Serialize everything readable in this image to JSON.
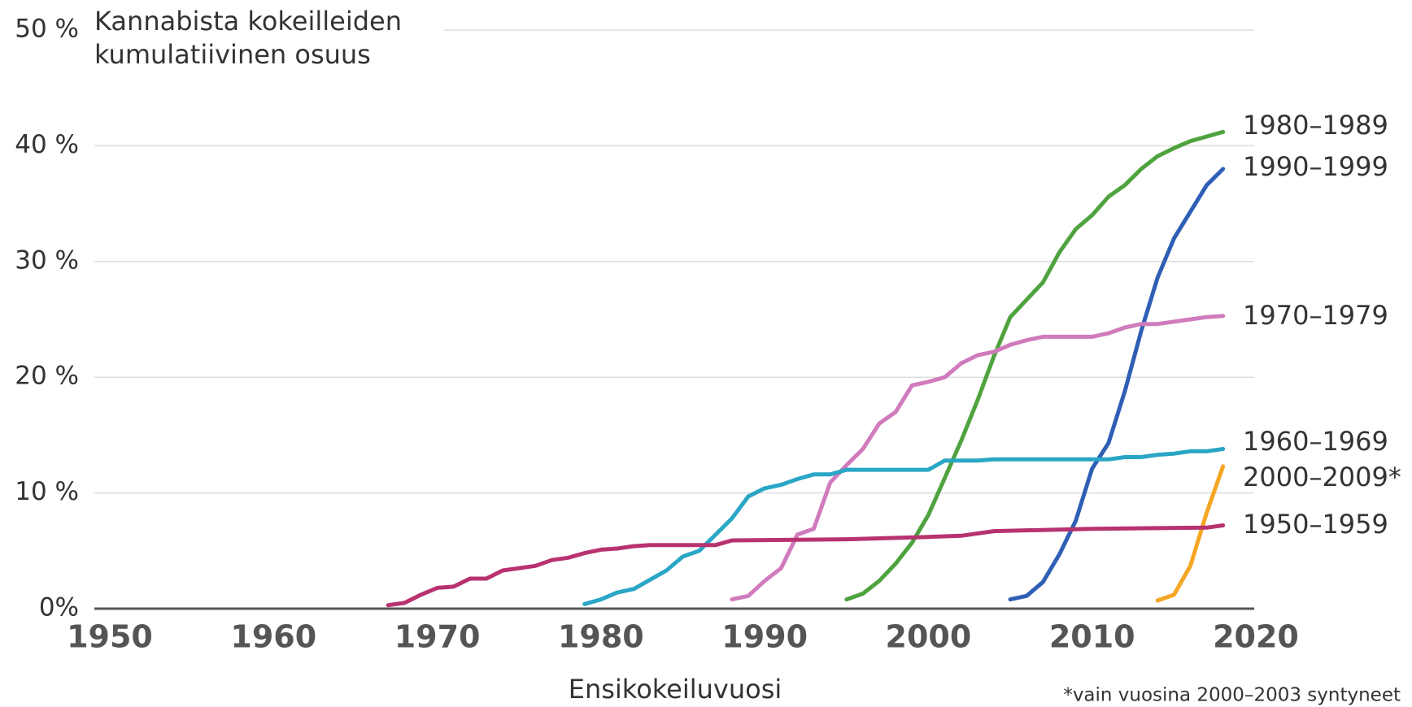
{
  "chart_data": {
    "type": "line",
    "title": [
      "Kannabista kokeilleiden",
      "kumulatiivinen osuus"
    ],
    "x_label": "Ensikokeiluvuosi",
    "note": "*vain vuosina 2000–2003 syntyneet",
    "xlim": [
      1950,
      2020
    ],
    "xticks": [
      1950,
      1960,
      1970,
      1980,
      1990,
      2000,
      2010,
      2020
    ],
    "ylim": [
      0,
      50
    ],
    "yticks": [
      {
        "value": 0,
        "label": "0%"
      },
      {
        "value": 10,
        "label": "10 %"
      },
      {
        "value": 20,
        "label": "20 %"
      },
      {
        "value": 30,
        "label": "30 %"
      },
      {
        "value": 40,
        "label": "40 %"
      },
      {
        "value": 50,
        "label": "50 %"
      }
    ],
    "grid": true,
    "series": [
      {
        "name": "1980–1989",
        "color": "#4fa33f",
        "x": [
          1995,
          1996,
          1997,
          1998,
          1999,
          2000,
          2001,
          2002,
          2003,
          2004,
          2005,
          2006,
          2007,
          2008,
          2009,
          2010,
          2011,
          2012,
          2013,
          2014,
          2015,
          2016,
          2017,
          2018
        ],
        "values": [
          0.8,
          1.3,
          2.4,
          3.9,
          5.7,
          8.1,
          11.3,
          14.5,
          18.0,
          21.8,
          25.2,
          26.7,
          28.2,
          30.8,
          32.8,
          34.0,
          35.6,
          36.6,
          38.0,
          39.1,
          39.8,
          40.4,
          40.8,
          41.2
        ]
      },
      {
        "name": "1990–1999",
        "color": "#2f5fb5",
        "x": [
          2005,
          2006,
          2007,
          2008,
          2009,
          2010,
          2011,
          2012,
          2013,
          2014,
          2015,
          2016,
          2017,
          2018
        ],
        "values": [
          0.8,
          1.1,
          2.3,
          4.7,
          7.6,
          12.1,
          14.3,
          18.8,
          24.0,
          28.6,
          32.0,
          34.3,
          36.6,
          38.0
        ]
      },
      {
        "name": "1970–1979",
        "color": "#d07bbd",
        "x": [
          1988,
          1989,
          1990,
          1991,
          1992,
          1993,
          1994,
          1995,
          1996,
          1997,
          1998,
          1999,
          2000,
          2001,
          2002,
          2003,
          2004,
          2005,
          2006,
          2007,
          2010,
          2011,
          2012,
          2013,
          2014,
          2015,
          2016,
          2017,
          2018
        ],
        "values": [
          0.8,
          1.1,
          2.4,
          3.5,
          6.4,
          6.9,
          10.9,
          12.4,
          13.8,
          16.0,
          17.0,
          19.3,
          19.6,
          20.0,
          21.2,
          21.9,
          22.2,
          22.8,
          23.2,
          23.5,
          23.5,
          23.8,
          24.3,
          24.6,
          24.6,
          24.8,
          25.0,
          25.2,
          25.3
        ]
      },
      {
        "name": "1960–1969",
        "color": "#2aa6c6",
        "x": [
          1979,
          1980,
          1981,
          1982,
          1983,
          1984,
          1985,
          1986,
          1987,
          1988,
          1989,
          1990,
          1991,
          1992,
          1993,
          1994,
          1995,
          2000,
          2001,
          2003,
          2004,
          2011,
          2012,
          2013,
          2014,
          2015,
          2016,
          2017,
          2018
        ],
        "values": [
          0.4,
          0.8,
          1.4,
          1.7,
          2.5,
          3.3,
          4.5,
          5.0,
          6.4,
          7.8,
          9.7,
          10.4,
          10.7,
          11.2,
          11.6,
          11.6,
          12.0,
          12.0,
          12.8,
          12.8,
          12.9,
          12.9,
          13.1,
          13.1,
          13.3,
          13.4,
          13.6,
          13.6,
          13.8
        ]
      },
      {
        "name": "2000–2009*",
        "color": "#f5a623",
        "x": [
          2014,
          2015,
          2016,
          2017,
          2018
        ],
        "values": [
          0.7,
          1.2,
          3.7,
          8.3,
          12.3
        ]
      },
      {
        "name": "1950–1959",
        "color": "#b83270",
        "x": [
          1967,
          1968,
          1969,
          1970,
          1971,
          1972,
          1973,
          1974,
          1975,
          1976,
          1977,
          1978,
          1979,
          1980,
          1981,
          1982,
          1983,
          1987,
          1988,
          1995,
          2000,
          2002,
          2004,
          2010,
          2017,
          2018
        ],
        "values": [
          0.3,
          0.5,
          1.2,
          1.8,
          1.9,
          2.6,
          2.6,
          3.3,
          3.5,
          3.7,
          4.2,
          4.4,
          4.8,
          5.1,
          5.2,
          5.4,
          5.5,
          5.5,
          5.9,
          6.0,
          6.2,
          6.3,
          6.7,
          6.9,
          7.0,
          7.2
        ]
      }
    ]
  }
}
